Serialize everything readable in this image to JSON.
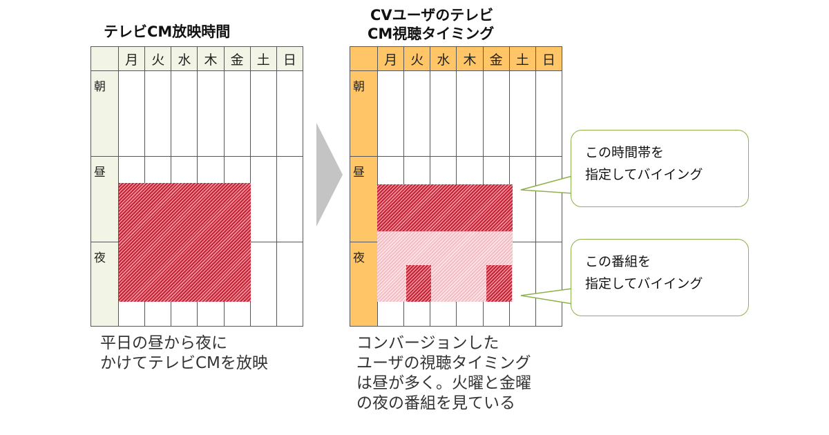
{
  "left": {
    "title": "テレビCM放映時間",
    "days": [
      "月",
      "火",
      "水",
      "木",
      "金",
      "土",
      "日"
    ],
    "rows": [
      "朝",
      "昼",
      "夜"
    ],
    "caption": "平日の昼から夜に\nかけてテレビCMを放映"
  },
  "right": {
    "title_line1": "CVユーザのテレビ",
    "title_line2": "CM視聴タイミング",
    "days": [
      "月",
      "火",
      "水",
      "木",
      "金",
      "土",
      "日"
    ],
    "rows": [
      "朝",
      "昼",
      "夜"
    ],
    "caption": "コンバージョンした\nユーザの視聴タイミング\nは昼が多く。火曜と金曜\nの夜の番組を見ている"
  },
  "bubbles": {
    "time_slot": "この時間帯を\n指定してバイイング",
    "program": "この番組を\n指定してバイイング"
  },
  "colors": {
    "left_header_bg": "#f2f5e6",
    "right_header_bg": "#ffc566",
    "hatch_dark": "#c72134",
    "hatch_light": "#f4bcc4",
    "bubble_border": "#8cb04a",
    "arrow": "#c4c4c4"
  },
  "icons": {
    "arrow": "right-arrow-icon"
  }
}
